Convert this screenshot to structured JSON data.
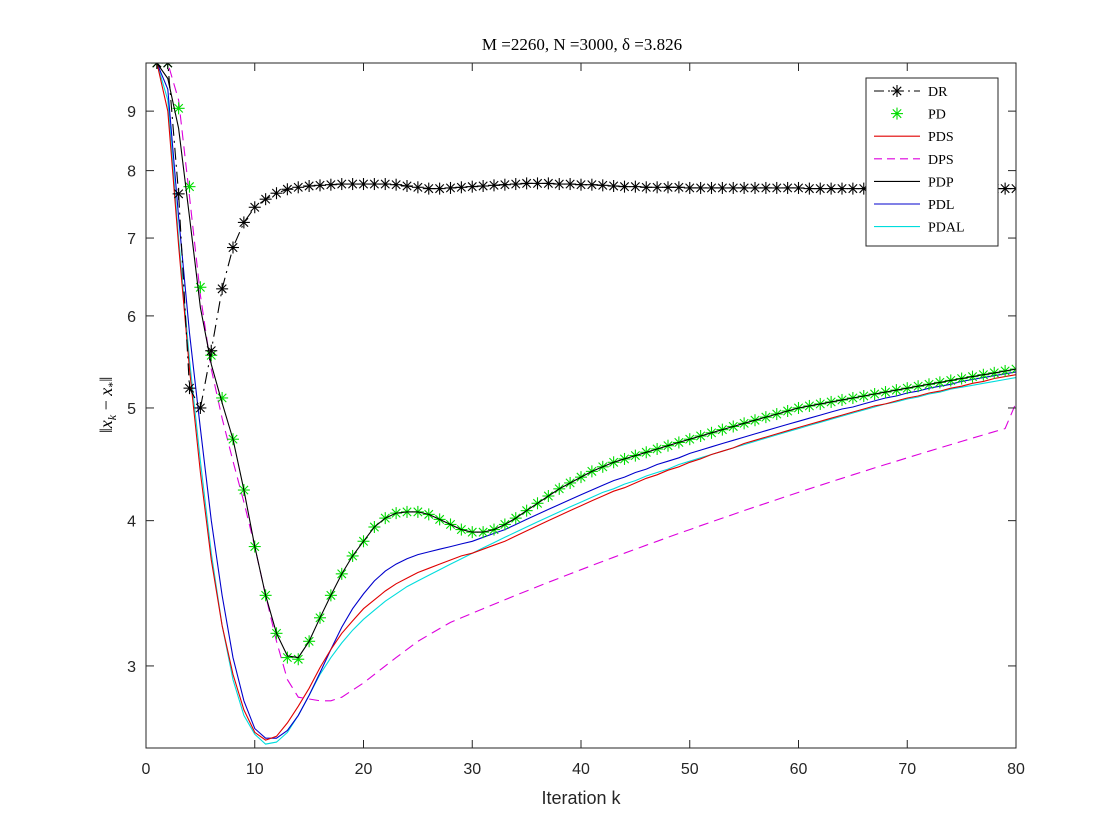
{
  "chart_data": {
    "type": "line",
    "title": "M =2260, N =3000, δ =3.826",
    "xlabel": "Iteration k",
    "ylabel": "||x_k − x_*||",
    "ylabel_parts": {
      "lead": "‖",
      "x": "x",
      "k": "k",
      "minus": " − ",
      "star": "*",
      "trail": "‖"
    },
    "xlim": [
      0,
      80
    ],
    "ylim": [
      2.55,
      9.9
    ],
    "yscale": "log",
    "xticks": [
      0,
      10,
      20,
      30,
      40,
      50,
      60,
      70,
      80
    ],
    "yticks": [
      3,
      4,
      5,
      6,
      7,
      8,
      9
    ],
    "grid": false,
    "legend_position": "top-right",
    "series": [
      {
        "name": "DR",
        "color": "#000000",
        "style": "dashdot",
        "marker": "asterisk",
        "x": [
          1,
          2,
          3,
          4,
          5,
          6,
          7,
          8,
          9,
          10,
          11,
          12,
          13,
          14,
          15,
          16,
          17,
          18,
          19,
          20,
          21,
          22,
          23,
          24,
          25,
          26,
          27,
          28,
          29,
          30,
          31,
          32,
          33,
          34,
          35,
          36,
          37,
          38,
          39,
          40,
          41,
          42,
          43,
          44,
          45,
          46,
          47,
          48,
          49,
          50,
          51,
          52,
          53,
          54,
          55,
          56,
          57,
          58,
          59,
          60,
          61,
          62,
          63,
          64,
          65,
          66,
          67,
          68,
          69,
          70,
          71,
          72,
          73,
          74,
          75,
          76,
          77,
          78,
          79,
          80
        ],
        "values": [
          9.9,
          9.9,
          7.64,
          5.2,
          5.0,
          5.6,
          6.33,
          6.87,
          7.22,
          7.44,
          7.56,
          7.65,
          7.71,
          7.74,
          7.76,
          7.77,
          7.78,
          7.79,
          7.79,
          7.79,
          7.79,
          7.79,
          7.78,
          7.76,
          7.74,
          7.72,
          7.72,
          7.73,
          7.74,
          7.75,
          7.76,
          7.77,
          7.78,
          7.79,
          7.8,
          7.8,
          7.8,
          7.79,
          7.79,
          7.78,
          7.78,
          7.77,
          7.76,
          7.75,
          7.75,
          7.74,
          7.74,
          7.74,
          7.74,
          7.73,
          7.73,
          7.73,
          7.73,
          7.73,
          7.73,
          7.73,
          7.73,
          7.73,
          7.73,
          7.73,
          7.72,
          7.72,
          7.72,
          7.72,
          7.72,
          7.72,
          7.72,
          7.72,
          7.72,
          7.72,
          7.72,
          7.72,
          7.72,
          7.72,
          7.72,
          7.72,
          7.72,
          7.72,
          7.72,
          7.72
        ]
      },
      {
        "name": "PD",
        "color": "#00dd00",
        "style": "none",
        "marker": "asterisk",
        "x": [
          1,
          2,
          3,
          4,
          5,
          6,
          7,
          8,
          9,
          10,
          11,
          12,
          13,
          14,
          15,
          16,
          17,
          18,
          19,
          20,
          21,
          22,
          23,
          24,
          25,
          26,
          27,
          28,
          29,
          30,
          31,
          32,
          33,
          34,
          35,
          36,
          37,
          38,
          39,
          40,
          41,
          42,
          43,
          44,
          45,
          46,
          47,
          48,
          49,
          50,
          51,
          52,
          53,
          54,
          55,
          56,
          57,
          58,
          59,
          60,
          61,
          62,
          63,
          64,
          65,
          66,
          67,
          68,
          69,
          70,
          71,
          72,
          73,
          74,
          75,
          76,
          77,
          78,
          79,
          80
        ],
        "values": [
          9.9,
          9.9,
          9.05,
          7.75,
          6.35,
          5.55,
          5.1,
          4.7,
          4.25,
          3.8,
          3.45,
          3.2,
          3.05,
          3.04,
          3.15,
          3.3,
          3.45,
          3.6,
          3.73,
          3.84,
          3.95,
          4.02,
          4.06,
          4.07,
          4.07,
          4.05,
          4.01,
          3.97,
          3.93,
          3.91,
          3.91,
          3.93,
          3.97,
          4.02,
          4.08,
          4.14,
          4.2,
          4.26,
          4.31,
          4.36,
          4.41,
          4.45,
          4.49,
          4.52,
          4.55,
          4.58,
          4.61,
          4.64,
          4.67,
          4.7,
          4.73,
          4.76,
          4.79,
          4.82,
          4.85,
          4.88,
          4.91,
          4.94,
          4.97,
          5.0,
          5.02,
          5.04,
          5.06,
          5.08,
          5.1,
          5.12,
          5.14,
          5.16,
          5.18,
          5.2,
          5.22,
          5.24,
          5.26,
          5.28,
          5.3,
          5.32,
          5.34,
          5.36,
          5.38,
          5.4
        ]
      },
      {
        "name": "PDS",
        "color": "#e00000",
        "style": "solid",
        "marker": "none",
        "x": [
          1,
          2,
          3,
          4,
          5,
          6,
          7,
          8,
          9,
          10,
          11,
          12,
          13,
          14,
          15,
          16,
          17,
          18,
          19,
          20,
          21,
          22,
          23,
          24,
          25,
          26,
          27,
          28,
          29,
          30,
          31,
          32,
          33,
          34,
          35,
          36,
          37,
          38,
          39,
          40,
          41,
          42,
          43,
          44,
          45,
          46,
          47,
          48,
          49,
          50,
          51,
          52,
          53,
          54,
          55,
          56,
          57,
          58,
          59,
          60,
          61,
          62,
          63,
          64,
          65,
          66,
          67,
          68,
          69,
          70,
          71,
          72,
          73,
          74,
          75,
          76,
          77,
          78,
          79,
          80
        ],
        "values": [
          9.9,
          9.0,
          6.9,
          5.4,
          4.4,
          3.7,
          3.25,
          2.95,
          2.75,
          2.63,
          2.59,
          2.61,
          2.68,
          2.77,
          2.87,
          2.99,
          3.1,
          3.2,
          3.28,
          3.36,
          3.42,
          3.48,
          3.53,
          3.57,
          3.61,
          3.64,
          3.67,
          3.7,
          3.73,
          3.75,
          3.78,
          3.81,
          3.84,
          3.88,
          3.92,
          3.96,
          4.0,
          4.04,
          4.08,
          4.12,
          4.16,
          4.2,
          4.24,
          4.27,
          4.31,
          4.35,
          4.38,
          4.42,
          4.45,
          4.49,
          4.52,
          4.56,
          4.59,
          4.62,
          4.66,
          4.69,
          4.72,
          4.75,
          4.78,
          4.81,
          4.84,
          4.87,
          4.9,
          4.93,
          4.96,
          4.99,
          5.02,
          5.04,
          5.07,
          5.1,
          5.12,
          5.15,
          5.17,
          5.2,
          5.22,
          5.25,
          5.27,
          5.3,
          5.32,
          5.34
        ]
      },
      {
        "name": "DPS",
        "color": "#dd00dd",
        "style": "dashed",
        "marker": "none",
        "x": [
          1,
          2,
          3,
          4,
          5,
          6,
          7,
          8,
          9,
          10,
          11,
          12,
          13,
          14,
          15,
          16,
          17,
          18,
          19,
          20,
          21,
          22,
          23,
          24,
          25,
          26,
          27,
          28,
          29,
          30,
          31,
          32,
          33,
          34,
          35,
          36,
          37,
          38,
          39,
          40,
          41,
          42,
          43,
          44,
          45,
          46,
          47,
          48,
          49,
          50,
          51,
          52,
          53,
          54,
          55,
          56,
          57,
          58,
          59,
          60,
          61,
          62,
          63,
          64,
          65,
          66,
          67,
          68,
          69,
          70,
          71,
          72,
          73,
          74,
          75,
          76,
          77,
          78,
          79,
          80
        ],
        "values": [
          9.9,
          9.9,
          9.2,
          7.6,
          6.25,
          5.4,
          4.9,
          4.5,
          4.15,
          3.8,
          3.45,
          3.15,
          2.92,
          2.82,
          2.81,
          2.8,
          2.8,
          2.82,
          2.86,
          2.9,
          2.95,
          3.0,
          3.05,
          3.1,
          3.15,
          3.19,
          3.23,
          3.27,
          3.3,
          3.33,
          3.36,
          3.39,
          3.42,
          3.45,
          3.48,
          3.51,
          3.54,
          3.57,
          3.6,
          3.63,
          3.66,
          3.69,
          3.72,
          3.75,
          3.78,
          3.81,
          3.84,
          3.87,
          3.9,
          3.93,
          3.96,
          3.99,
          4.02,
          4.05,
          4.08,
          4.11,
          4.14,
          4.17,
          4.2,
          4.23,
          4.26,
          4.29,
          4.32,
          4.35,
          4.38,
          4.41,
          4.44,
          4.47,
          4.5,
          4.53,
          4.56,
          4.59,
          4.62,
          4.65,
          4.68,
          4.71,
          4.74,
          4.77,
          4.8,
          5.05
        ]
      },
      {
        "name": "PDP",
        "color": "#000000",
        "style": "solid",
        "marker": "none",
        "x": [
          1,
          2,
          3,
          4,
          5,
          6,
          7,
          8,
          9,
          10,
          11,
          12,
          13,
          14,
          15,
          16,
          17,
          18,
          19,
          20,
          21,
          22,
          23,
          24,
          25,
          26,
          27,
          28,
          29,
          30,
          31,
          32,
          33,
          34,
          35,
          36,
          37,
          38,
          39,
          40,
          41,
          42,
          43,
          44,
          45,
          46,
          47,
          48,
          49,
          50,
          51,
          52,
          53,
          54,
          55,
          56,
          57,
          58,
          59,
          60,
          61,
          62,
          63,
          64,
          65,
          66,
          67,
          68,
          69,
          70,
          71,
          72,
          73,
          74,
          75,
          76,
          77,
          78,
          79,
          80
        ],
        "values": [
          9.9,
          9.6,
          8.7,
          7.3,
          6.1,
          5.45,
          5.05,
          4.7,
          4.25,
          3.8,
          3.45,
          3.2,
          3.06,
          3.05,
          3.15,
          3.3,
          3.45,
          3.6,
          3.73,
          3.84,
          3.95,
          4.02,
          4.06,
          4.07,
          4.07,
          4.05,
          4.01,
          3.97,
          3.93,
          3.91,
          3.91,
          3.93,
          3.97,
          4.02,
          4.08,
          4.14,
          4.2,
          4.26,
          4.31,
          4.36,
          4.41,
          4.45,
          4.49,
          4.52,
          4.55,
          4.58,
          4.61,
          4.64,
          4.67,
          4.7,
          4.73,
          4.76,
          4.79,
          4.82,
          4.85,
          4.88,
          4.91,
          4.94,
          4.97,
          5.0,
          5.02,
          5.04,
          5.06,
          5.08,
          5.1,
          5.12,
          5.14,
          5.16,
          5.18,
          5.2,
          5.22,
          5.24,
          5.26,
          5.28,
          5.3,
          5.32,
          5.34,
          5.36,
          5.38,
          5.4
        ]
      },
      {
        "name": "PDL",
        "color": "#0000cc",
        "style": "solid",
        "marker": "none",
        "x": [
          1,
          2,
          3,
          4,
          5,
          6,
          7,
          8,
          9,
          10,
          11,
          12,
          13,
          14,
          15,
          16,
          17,
          18,
          19,
          20,
          21,
          22,
          23,
          24,
          25,
          26,
          27,
          28,
          29,
          30,
          31,
          32,
          33,
          34,
          35,
          36,
          37,
          38,
          39,
          40,
          41,
          42,
          43,
          44,
          45,
          46,
          47,
          48,
          49,
          50,
          51,
          52,
          53,
          54,
          55,
          56,
          57,
          58,
          59,
          60,
          61,
          62,
          63,
          64,
          65,
          66,
          67,
          68,
          69,
          70,
          71,
          72,
          73,
          74,
          75,
          76,
          77,
          78,
          79,
          80
        ],
        "values": [
          9.9,
          9.4,
          7.3,
          5.8,
          4.8,
          4.0,
          3.45,
          3.05,
          2.8,
          2.65,
          2.6,
          2.6,
          2.64,
          2.72,
          2.83,
          2.96,
          3.1,
          3.24,
          3.36,
          3.46,
          3.55,
          3.62,
          3.67,
          3.71,
          3.74,
          3.76,
          3.78,
          3.8,
          3.82,
          3.84,
          3.87,
          3.9,
          3.93,
          3.97,
          4.01,
          4.05,
          4.09,
          4.13,
          4.17,
          4.21,
          4.25,
          4.29,
          4.33,
          4.36,
          4.4,
          4.43,
          4.47,
          4.5,
          4.53,
          4.57,
          4.6,
          4.63,
          4.66,
          4.69,
          4.72,
          4.75,
          4.78,
          4.81,
          4.84,
          4.87,
          4.9,
          4.93,
          4.96,
          4.99,
          5.01,
          5.04,
          5.07,
          5.1,
          5.12,
          5.15,
          5.17,
          5.2,
          5.22,
          5.24,
          5.27,
          5.29,
          5.31,
          5.33,
          5.35,
          5.37
        ]
      },
      {
        "name": "PDAL",
        "color": "#00dddd",
        "style": "solid",
        "marker": "none",
        "x": [
          1,
          2,
          3,
          4,
          5,
          6,
          7,
          8,
          9,
          10,
          11,
          12,
          13,
          14,
          15,
          16,
          17,
          18,
          19,
          20,
          21,
          22,
          23,
          24,
          25,
          26,
          27,
          28,
          29,
          30,
          31,
          32,
          33,
          34,
          35,
          36,
          37,
          38,
          39,
          40,
          41,
          42,
          43,
          44,
          45,
          46,
          47,
          48,
          49,
          50,
          51,
          52,
          53,
          54,
          55,
          56,
          57,
          58,
          59,
          60,
          61,
          62,
          63,
          64,
          65,
          66,
          67,
          68,
          69,
          70,
          71,
          72,
          73,
          74,
          75,
          76,
          77,
          78,
          79,
          80
        ],
        "values": [
          9.9,
          9.2,
          7.0,
          5.5,
          4.5,
          3.75,
          3.25,
          2.92,
          2.72,
          2.62,
          2.57,
          2.58,
          2.63,
          2.72,
          2.83,
          2.95,
          3.05,
          3.14,
          3.22,
          3.29,
          3.35,
          3.41,
          3.46,
          3.51,
          3.55,
          3.59,
          3.63,
          3.67,
          3.71,
          3.75,
          3.79,
          3.83,
          3.87,
          3.91,
          3.95,
          3.99,
          4.03,
          4.07,
          4.11,
          4.15,
          4.19,
          4.23,
          4.26,
          4.3,
          4.33,
          4.37,
          4.4,
          4.43,
          4.47,
          4.5,
          4.53,
          4.56,
          4.59,
          4.62,
          4.65,
          4.68,
          4.71,
          4.74,
          4.77,
          4.8,
          4.83,
          4.86,
          4.89,
          4.92,
          4.95,
          4.98,
          5.01,
          5.04,
          5.06,
          5.09,
          5.11,
          5.14,
          5.16,
          5.19,
          5.21,
          5.23,
          5.25,
          5.27,
          5.29,
          5.31
        ]
      }
    ]
  }
}
